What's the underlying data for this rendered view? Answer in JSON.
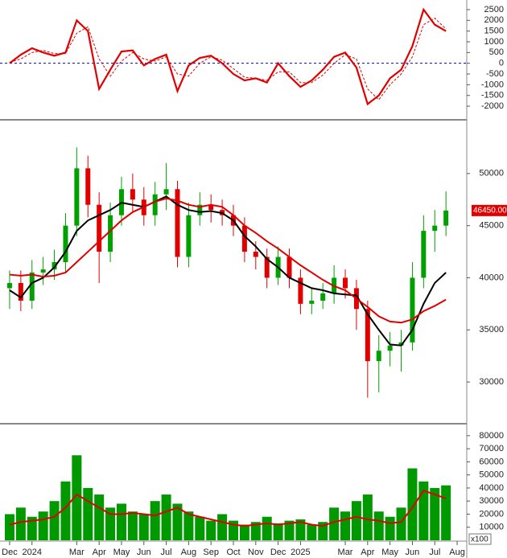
{
  "chart_data": [
    {
      "type": "oscillator",
      "x": [
        0,
        0.5,
        1,
        1.5,
        2,
        2.5,
        3,
        3.5,
        4,
        4.5,
        5,
        5.5,
        6,
        6.5,
        7,
        7.5,
        8,
        8.5,
        9,
        9.5,
        10,
        10.5,
        11,
        11.5,
        12,
        12.5,
        13,
        13.5,
        14,
        14.5,
        15,
        15.5,
        16,
        16.5,
        17,
        17.5,
        18,
        18.5,
        19,
        19.5
      ],
      "xlim": [
        -0.43,
        20.43
      ],
      "ylim": [
        -2560,
        2873
      ],
      "yticks": [
        2500,
        2000,
        1500,
        1000,
        500,
        0,
        -500,
        -1000,
        -1500,
        -2000
      ],
      "reference_line": 0,
      "reference_color": "#0000b0",
      "series": [
        {
          "color": "#e00000",
          "dashed": false,
          "values": [
            0,
            400,
            700,
            500,
            350,
            500,
            2000,
            1500,
            -1200,
            -300,
            550,
            600,
            -100,
            200,
            400,
            -1300,
            -100,
            250,
            350,
            0,
            -500,
            -800,
            -700,
            -900,
            0,
            -600,
            -1100,
            -800,
            -300,
            300,
            500,
            -200,
            -1900,
            -1500,
            -700,
            -300,
            800,
            2500,
            1800,
            1500
          ]
        },
        {
          "color": "#e00000",
          "dashed": true,
          "values": [
            50,
            200,
            500,
            600,
            450,
            450,
            1400,
            1700,
            200,
            -600,
            100,
            500,
            200,
            100,
            300,
            -500,
            -600,
            0,
            300,
            150,
            -250,
            -650,
            -700,
            -800,
            -400,
            -400,
            -900,
            -900,
            -550,
            0,
            400,
            200,
            -1200,
            -1700,
            -1000,
            -500,
            300,
            1800,
            2100,
            1600
          ]
        }
      ]
    },
    {
      "type": "candlestick",
      "x": [
        0,
        0.5,
        1,
        1.5,
        2,
        2.5,
        3,
        3.5,
        4,
        4.5,
        5,
        5.5,
        6,
        6.5,
        7,
        7.5,
        8,
        8.5,
        9,
        9.5,
        10,
        10.5,
        11,
        11.5,
        12,
        12.5,
        13,
        13.5,
        14,
        14.5,
        15,
        15.5,
        16,
        16.5,
        17,
        17.5,
        18,
        18.5,
        19,
        19.5
      ],
      "xlim": [
        -0.43,
        20.43
      ],
      "ylim": [
        26150,
        55000
      ],
      "yticks": [
        50000,
        45000,
        40000,
        35000,
        30000
      ],
      "up_color": "#00a000",
      "down_color": "#e00000",
      "open": [
        39000,
        39500,
        37800,
        40500,
        40800,
        41500,
        45000,
        50500,
        47000,
        42500,
        46000,
        48500,
        47500,
        46000,
        48000,
        48500,
        42000,
        46000,
        47000,
        46500,
        46000,
        45000,
        42500,
        42000,
        40000,
        42000,
        40000,
        37500,
        37800,
        38500,
        40000,
        39000,
        37000,
        32000,
        33000,
        33500,
        33800,
        40000,
        44500,
        45000
      ],
      "high": [
        40700,
        40700,
        41700,
        42000,
        42700,
        46200,
        52500,
        51700,
        48200,
        47200,
        49700,
        50000,
        48700,
        49200,
        51000,
        49300,
        47200,
        48200,
        48000,
        47500,
        47000,
        45800,
        43500,
        42800,
        43000,
        42800,
        40800,
        39000,
        39500,
        41200,
        40800,
        39800,
        37800,
        34500,
        34800,
        35000,
        41500,
        46000,
        46500,
        48300
      ],
      "low": [
        37000,
        36800,
        37000,
        39300,
        39800,
        40500,
        44000,
        45800,
        39500,
        41500,
        45000,
        46300,
        45000,
        45000,
        46500,
        41000,
        41000,
        45000,
        45300,
        45000,
        44000,
        41500,
        40800,
        39000,
        39300,
        39000,
        36500,
        36500,
        37000,
        37500,
        38000,
        35000,
        28500,
        29000,
        31500,
        31000,
        33000,
        39000,
        42500,
        44000
      ],
      "close": [
        39500,
        37800,
        40500,
        40800,
        41500,
        45000,
        50500,
        47000,
        42500,
        46000,
        48500,
        47500,
        46000,
        48000,
        48500,
        42000,
        46000,
        47000,
        46500,
        46000,
        45000,
        42500,
        42000,
        40000,
        42000,
        40000,
        37500,
        37800,
        38500,
        40000,
        39000,
        37000,
        32000,
        33000,
        33500,
        33800,
        40000,
        44500,
        45000,
        46450
      ],
      "lines": [
        {
          "color": "#000000",
          "values": [
            38800,
            38100,
            39500,
            40000,
            41000,
            42500,
            44500,
            45500,
            46000,
            46500,
            47200,
            47000,
            46800,
            47300,
            47800,
            47000,
            46500,
            46300,
            46400,
            46200,
            45500,
            44000,
            43000,
            41800,
            41000,
            40000,
            39500,
            39000,
            38800,
            38500,
            38400,
            38300,
            36500,
            35000,
            33600,
            33500,
            35000,
            37500,
            39500,
            40500
          ]
        },
        {
          "color": "#e00000",
          "values": [
            40300,
            40200,
            40300,
            40100,
            40200,
            40500,
            41500,
            42500,
            43500,
            44500,
            45500,
            46300,
            46800,
            47300,
            47600,
            47400,
            47000,
            46800,
            47000,
            46800,
            46000,
            45000,
            44300,
            43500,
            42800,
            42000,
            41200,
            40500,
            39800,
            39200,
            38800,
            38000,
            37200,
            36300,
            35800,
            35700,
            36000,
            36800,
            37300,
            37900
          ]
        }
      ],
      "current_value": 46450,
      "current_label": "46450.00",
      "current_color": "#e00000"
    },
    {
      "type": "volume",
      "x": [
        0,
        0.5,
        1,
        1.5,
        2,
        2.5,
        3,
        3.5,
        4,
        4.5,
        5,
        5.5,
        6,
        6.5,
        7,
        7.5,
        8,
        8.5,
        9,
        9.5,
        10,
        10.5,
        11,
        11.5,
        12,
        12.5,
        13,
        13.5,
        14,
        14.5,
        15,
        15.5,
        16,
        16.5,
        17,
        17.5,
        18,
        18.5,
        19,
        19.5
      ],
      "xlim": [
        -0.43,
        20.43
      ],
      "ylim": [
        0,
        87900
      ],
      "yticks": [
        80000,
        70000,
        60000,
        50000,
        40000,
        30000,
        20000,
        10000
      ],
      "unit_label": "x100",
      "color": "#009900",
      "values": [
        20000,
        25000,
        18000,
        22000,
        30000,
        45000,
        65000,
        40000,
        35000,
        25000,
        28000,
        22000,
        20000,
        30000,
        35000,
        28000,
        22000,
        18000,
        15000,
        20000,
        15000,
        12000,
        14000,
        18000,
        13000,
        15000,
        16000,
        12000,
        14000,
        25000,
        22000,
        30000,
        35000,
        22000,
        18000,
        25000,
        55000,
        45000,
        40000,
        42000
      ],
      "ma_color": "#e00000",
      "ma_values": [
        12000,
        14000,
        15000,
        16000,
        18000,
        25000,
        35000,
        30000,
        25000,
        20000,
        20000,
        21000,
        20000,
        19000,
        22000,
        25000,
        20000,
        18000,
        16000,
        14000,
        12000,
        11000,
        12000,
        13000,
        12000,
        13000,
        14000,
        12000,
        11000,
        14000,
        16000,
        18000,
        16000,
        15000,
        13000,
        14000,
        25000,
        38000,
        35000,
        32000
      ],
      "xticks": [
        {
          "value": 0,
          "label": "Dec"
        },
        {
          "value": 1,
          "label": "2024"
        },
        {
          "value": 3,
          "label": "Mar"
        },
        {
          "value": 4,
          "label": "Apr"
        },
        {
          "value": 5,
          "label": "May"
        },
        {
          "value": 6,
          "label": "Jun"
        },
        {
          "value": 7,
          "label": "Jul"
        },
        {
          "value": 8,
          "label": "Aug"
        },
        {
          "value": 9,
          "label": "Sep"
        },
        {
          "value": 10,
          "label": "Oct"
        },
        {
          "value": 11,
          "label": "Nov"
        },
        {
          "value": 12,
          "label": "Dec"
        },
        {
          "value": 13,
          "label": "2025"
        },
        {
          "value": 15,
          "label": "Mar"
        },
        {
          "value": 16,
          "label": "Apr"
        },
        {
          "value": 17,
          "label": "May"
        },
        {
          "value": 18,
          "label": "Jun"
        },
        {
          "value": 19,
          "label": "Jul"
        },
        {
          "value": 20,
          "label": "Aug"
        }
      ]
    }
  ]
}
